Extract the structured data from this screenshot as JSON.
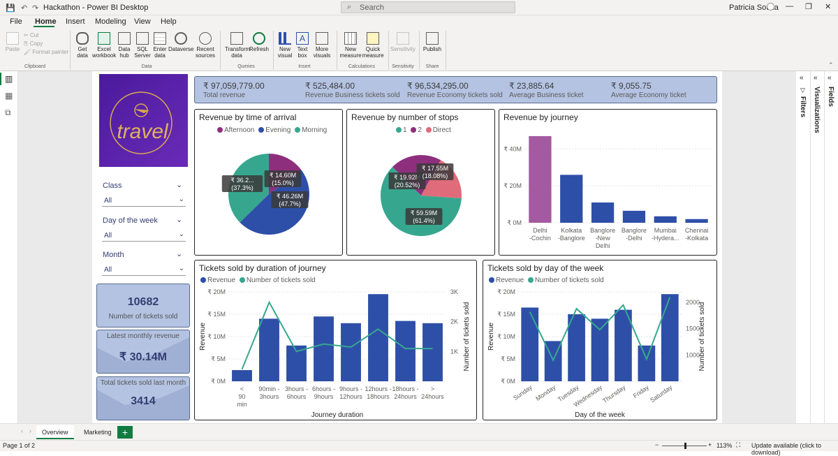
{
  "window": {
    "title": "Hackathon - Power BI Desktop",
    "search_placeholder": "Search",
    "user": "Patricia Souza"
  },
  "menu": [
    "File",
    "Home",
    "Insert",
    "Modeling",
    "View",
    "Help"
  ],
  "ribbon": {
    "clipboard": {
      "paste": "Paste",
      "cut": "Cut",
      "copy": "Copy",
      "format_painter": "Format painter",
      "group": "Clipboard"
    },
    "data": {
      "items": [
        "Get data",
        "Excel workbook",
        "Data hub",
        "SQL Server",
        "Enter data",
        "Dataverse",
        "Recent sources"
      ],
      "group": "Data"
    },
    "queries": {
      "items": [
        "Transform data",
        "Refresh"
      ],
      "group": "Queries"
    },
    "insert": {
      "items": [
        "New visual",
        "Text box",
        "More visuals"
      ],
      "group": "Insert"
    },
    "calculations": {
      "items": [
        "New measure",
        "Quick measure"
      ],
      "group": "Calculations"
    },
    "sensitivity": {
      "items": [
        "Sensitivity"
      ],
      "group": "Sensitivity"
    },
    "share": {
      "items": [
        "Publish"
      ],
      "group": "Share"
    }
  },
  "kpis": [
    {
      "value": "₹ 97,059,779.00",
      "label": "Total revenue"
    },
    {
      "value": "₹ 525,484.00",
      "label": "Revenue Business tickets sold"
    },
    {
      "value": "₹ 96,534,295.00",
      "label": "Revenue Economy tickets sold"
    },
    {
      "value": "₹ 23,885.64",
      "label": "Average Business ticket"
    },
    {
      "value": "₹ 9,055.75",
      "label": "Average Economy ticket"
    }
  ],
  "logo_text": "travel",
  "slicers": [
    {
      "title": "Class",
      "value": "All"
    },
    {
      "title": "Day of the week",
      "value": "All"
    },
    {
      "title": "Month",
      "value": "All"
    }
  ],
  "side_cards": {
    "tickets": {
      "value": "10682",
      "label": "Number of tickets sold"
    },
    "monthly_revenue": {
      "label": "Latest monthly revenue",
      "value": "₹ 30.14M"
    },
    "tickets_last_month": {
      "label": "Total tickets sold last month",
      "value": "3414"
    }
  },
  "colors": {
    "afternoon": "#8e2f7e",
    "evening": "#2e4fa8",
    "morning": "#36a78e",
    "stop2": "#8e2f7e",
    "direct": "#e06b7a",
    "bar": "#2e4fa8",
    "bar_highlight": "#a35aa0",
    "line": "#36a78e"
  },
  "chart_data": [
    {
      "type": "pie",
      "title": "Revenue by time of arrival",
      "legend": "top",
      "slices": [
        {
          "name": "Afternoon",
          "value": 14.6,
          "label": "₹ 14.60M",
          "pct": "(15.0%)"
        },
        {
          "name": "Evening",
          "value": 46.26,
          "label": "₹ 46.26M",
          "pct": "(47.7%)"
        },
        {
          "name": "Morning",
          "value": 36.2,
          "label": "₹ 36.2...",
          "pct": "(37.3%)"
        }
      ]
    },
    {
      "type": "pie",
      "title": "Revenue by number of stops",
      "legend": "top",
      "slices": [
        {
          "name": "1",
          "value": 59.59,
          "label": "₹ 59.59M",
          "pct": "(61.4%)"
        },
        {
          "name": "2",
          "value": 19.92,
          "label": "₹ 19.92M",
          "pct": "(20.52%)"
        },
        {
          "name": "Direct",
          "value": 17.55,
          "label": "₹ 17.55M",
          "pct": "(18.08%)"
        }
      ]
    },
    {
      "type": "bar",
      "title": "Revenue by journey",
      "categories": [
        "Delhi -Cochin",
        "Kolkata -Banglore",
        "Banglore -New Delhi",
        "Banglore -Delhi",
        "Mumbai -Hydera...",
        "Chennai -Kolkata"
      ],
      "values": [
        47,
        26,
        11,
        6.5,
        3.5,
        2
      ],
      "ylim": [
        0,
        50
      ],
      "yticks": [
        "₹ 0M",
        "₹ 20M",
        "₹ 40M"
      ]
    },
    {
      "type": "bar",
      "title": "Tickets sold by duration of journey",
      "legend": [
        "Revenue",
        "Number of tickets sold"
      ],
      "categories": [
        "< 90 min",
        "90min - 3hours",
        "3hours - 6hours",
        "6hours - 9hours",
        "9hours - 12hours",
        "12hours - 18hours",
        "18hours - 24hours",
        "> 24hours"
      ],
      "values": [
        2.5,
        14,
        8,
        14.5,
        13,
        19.5,
        13.5,
        13
      ],
      "line_values": [
        400,
        2650,
        1000,
        1250,
        1150,
        1750,
        1100,
        1100
      ],
      "ylim": [
        0,
        20
      ],
      "y2lim": [
        0,
        3000
      ],
      "yticks": [
        "₹ 0M",
        "₹ 5M",
        "₹ 10M",
        "₹ 15M",
        "₹ 20M"
      ],
      "y2ticks": [
        "1K",
        "2K",
        "3K"
      ],
      "xlabel": "Journey duration",
      "ylabel": "Revenue",
      "y2label": "Number of tickets sold"
    },
    {
      "type": "bar",
      "title": "Tickets sold by day of the week",
      "legend": [
        "Revenue",
        "Number of tickets sold"
      ],
      "categories": [
        "Sunday",
        "Monday",
        "Tuesday",
        "Wednesday",
        "Thursday",
        "Friday",
        "Saturday"
      ],
      "values": [
        16.5,
        9,
        15,
        14,
        16,
        8,
        19.5
      ],
      "line_values": [
        1820,
        900,
        1880,
        1480,
        1950,
        920,
        2100
      ],
      "ylim": [
        0,
        20
      ],
      "y2lim": [
        500,
        2200
      ],
      "yticks": [
        "₹ 0M",
        "₹ 5M",
        "₹ 10M",
        "₹ 15M",
        "₹ 20M"
      ],
      "y2ticks": [
        "1000",
        "1500",
        "2000"
      ],
      "xlabel": "Day of the week",
      "ylabel": "Revenue",
      "y2label": "Number of tickets sold"
    }
  ],
  "right_panes": [
    "Filters",
    "Visualizations",
    "Fields"
  ],
  "page_tabs": [
    "Overview",
    "Marketing"
  ],
  "status": {
    "page": "Page 1 of 2",
    "zoom": "113%",
    "update": "Update available (click to download)"
  }
}
